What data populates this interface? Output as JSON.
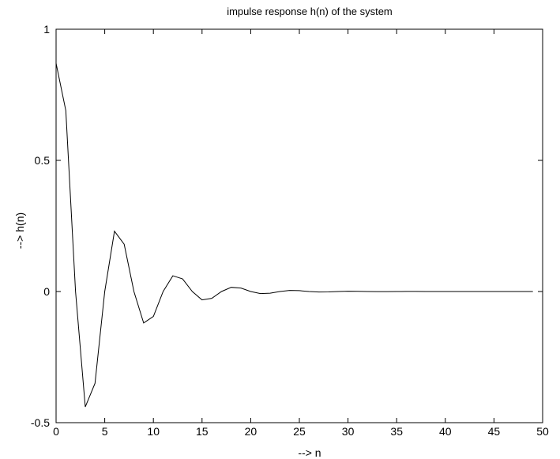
{
  "chart_data": {
    "type": "line",
    "title": "impulse response h(n) of the system",
    "xlabel": "--> n",
    "ylabel": "--> h(n)",
    "xlim": [
      0,
      50
    ],
    "ylim": [
      -0.5,
      1
    ],
    "xticks": [
      "0",
      "5",
      "10",
      "15",
      "20",
      "25",
      "30",
      "35",
      "40",
      "45",
      "50"
    ],
    "yticks": [
      "-0.5",
      "0",
      "0.5",
      "1"
    ],
    "grid": false,
    "series": [
      {
        "color": "#000000",
        "x": [
          0,
          1,
          2,
          3,
          4,
          5,
          6,
          7,
          8,
          9,
          10,
          11,
          12,
          13,
          14,
          15,
          16,
          17,
          18,
          19,
          20,
          21,
          22,
          23,
          24,
          25,
          26,
          27,
          28,
          29,
          30,
          31,
          32,
          33,
          34,
          35,
          36,
          37,
          38,
          39,
          40,
          41,
          42,
          43,
          44,
          45,
          46,
          47,
          48,
          49
        ],
        "y": [
          0.87,
          0.69,
          0.0,
          -0.44,
          -0.35,
          0.0,
          0.23,
          0.18,
          0.0,
          -0.12,
          -0.095,
          0.0,
          0.06,
          0.048,
          0.0,
          -0.032,
          -0.026,
          0.0,
          0.016,
          0.013,
          0.0,
          -0.008,
          -0.0065,
          0.0,
          0.004,
          0.0033,
          0.0,
          -0.002,
          -0.0016,
          0.0,
          0.001,
          0.0008,
          0.0,
          -0.0005,
          -0.0004,
          0.0,
          0.0003,
          0.0002,
          0.0,
          -0.0001,
          -0.0001,
          0.0,
          0.0,
          0.0,
          0.0,
          0.0,
          0.0,
          0.0,
          0.0,
          0.0
        ]
      }
    ]
  }
}
